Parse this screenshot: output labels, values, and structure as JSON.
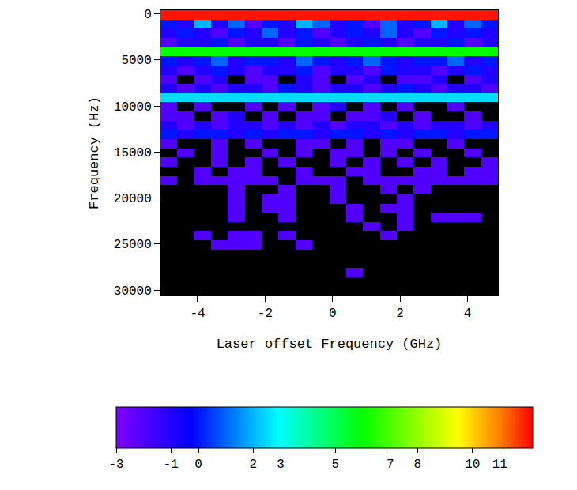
{
  "chart_data": {
    "type": "heatmap",
    "x_label": "Laser offset Frequency (GHz)",
    "y_label": "Frequency (Hz)",
    "x": [
      -4.85,
      -4.35,
      -3.85,
      -3.35,
      -2.85,
      -2.35,
      -1.85,
      -1.35,
      -0.85,
      -0.35,
      0.15,
      0.65,
      1.15,
      1.65,
      2.15,
      2.65,
      3.15,
      3.65,
      4.15,
      4.65
    ],
    "y": [
      100,
      1100,
      2100,
      3100,
      4100,
      5100,
      6100,
      7100,
      8100,
      9100,
      10100,
      11100,
      12100,
      13100,
      14100,
      15100,
      16100,
      17100,
      18100,
      19100,
      20100,
      21100,
      22100,
      23100,
      24100,
      25100,
      26100,
      27100,
      28100,
      29100,
      30100
    ],
    "cells": [
      [
        12,
        12,
        12,
        12,
        12,
        12,
        12,
        12,
        12,
        12,
        12,
        12,
        12,
        12,
        12,
        12,
        12,
        12,
        12,
        12
      ],
      [
        0,
        -1,
        2,
        -1,
        1,
        -2,
        0,
        -1,
        2,
        1,
        -1,
        0,
        -2,
        1,
        -1,
        0,
        2,
        -1,
        1,
        0
      ],
      [
        -1,
        0,
        -1,
        -2,
        0,
        -1,
        1,
        -1,
        0,
        -2,
        -1,
        0,
        -1,
        1,
        -1,
        -2,
        0,
        -1,
        0,
        -1
      ],
      [
        -2,
        -1,
        -1,
        0,
        -2,
        -1,
        -1,
        -2,
        0,
        -1,
        -2,
        -1,
        0,
        -1,
        -2,
        -1,
        -1,
        0,
        -2,
        -1
      ],
      [
        6,
        6,
        6,
        6,
        6,
        6,
        6,
        6,
        6,
        6,
        6,
        6,
        6,
        6,
        6,
        6,
        6,
        6,
        6,
        6
      ],
      [
        0,
        -1,
        0,
        1,
        -1,
        0,
        0,
        -1,
        1,
        0,
        -1,
        0,
        1,
        0,
        -1,
        0,
        0,
        1,
        -1,
        0
      ],
      [
        -1,
        -2,
        -1,
        0,
        -1,
        -2,
        -1,
        -1,
        0,
        -2,
        -1,
        -1,
        -2,
        0,
        -1,
        -1,
        -2,
        -1,
        0,
        -1
      ],
      [
        -2,
        null,
        -2,
        -1,
        null,
        -2,
        -2,
        null,
        -1,
        -2,
        null,
        -2,
        -1,
        null,
        -2,
        -2,
        -1,
        null,
        -2,
        -1
      ],
      [
        -1,
        -2,
        -1,
        -2,
        -1,
        -1,
        -2,
        0,
        -1,
        -2,
        -1,
        -1,
        -2,
        -1,
        0,
        -1,
        -2,
        -1,
        -1,
        -2
      ],
      [
        2.5,
        2.5,
        2.5,
        2.5,
        2.5,
        2.5,
        2.5,
        2.5,
        2.5,
        2.5,
        2.5,
        2.5,
        2.5,
        2.5,
        2.5,
        2.5,
        2.5,
        2.5,
        2.5,
        2.5
      ],
      [
        -2,
        null,
        -2,
        null,
        null,
        -2,
        null,
        -2,
        null,
        -2,
        -1,
        null,
        -2,
        null,
        -2,
        null,
        null,
        -2,
        null,
        null
      ],
      [
        -2,
        -2,
        null,
        -2,
        -1,
        null,
        -2,
        null,
        -2,
        -2,
        null,
        -2,
        -2,
        -1,
        null,
        -2,
        null,
        null,
        -2,
        null
      ],
      [
        -1,
        -2,
        -1,
        -2,
        -1,
        -1,
        -2,
        -1,
        -2,
        -1,
        -2,
        -1,
        -1,
        -2,
        -1,
        -2,
        -1,
        -1,
        -2,
        -1
      ],
      [
        0,
        -1,
        0,
        0,
        -1,
        0,
        -1,
        0,
        0,
        -1,
        0,
        0,
        -1,
        0,
        -1,
        0,
        0,
        -1,
        0,
        0
      ],
      [
        -2,
        null,
        null,
        -2,
        null,
        -2,
        null,
        null,
        -2,
        -2,
        null,
        -2,
        null,
        -2,
        -2,
        null,
        null,
        -2,
        null,
        null
      ],
      [
        null,
        -2,
        null,
        -2,
        null,
        null,
        -2,
        null,
        -2,
        null,
        -2,
        -2,
        null,
        -2,
        null,
        -2,
        null,
        null,
        -2,
        null
      ],
      [
        -2,
        null,
        null,
        -2,
        null,
        -2,
        null,
        -2,
        null,
        null,
        -2,
        null,
        -2,
        null,
        -2,
        null,
        -2,
        null,
        null,
        -2
      ],
      [
        null,
        null,
        -2,
        null,
        -2,
        -2,
        null,
        null,
        -2,
        null,
        null,
        -2,
        -2,
        null,
        null,
        -2,
        -2,
        null,
        -2,
        -2
      ],
      [
        -2,
        null,
        -2,
        -2,
        -2,
        -2,
        -2,
        null,
        -2,
        -2,
        -2,
        null,
        -2,
        -2,
        -2,
        -2,
        -2,
        -2,
        -2,
        -2
      ],
      [
        null,
        null,
        null,
        null,
        -2,
        null,
        null,
        -2,
        null,
        null,
        -2,
        null,
        null,
        -2,
        null,
        -2,
        null,
        null,
        null,
        null
      ],
      [
        null,
        null,
        null,
        null,
        -2,
        null,
        -2,
        -2,
        null,
        null,
        -2,
        null,
        null,
        null,
        -2,
        null,
        null,
        null,
        null,
        null
      ],
      [
        null,
        null,
        null,
        null,
        -2,
        null,
        -2,
        -2,
        null,
        null,
        null,
        -2,
        null,
        -2,
        -2,
        null,
        null,
        null,
        null,
        null
      ],
      [
        null,
        null,
        null,
        null,
        -2,
        null,
        null,
        -2,
        null,
        null,
        null,
        -2,
        null,
        null,
        -2,
        null,
        -2,
        -2,
        -2,
        null
      ],
      [
        null,
        null,
        null,
        null,
        null,
        null,
        null,
        null,
        null,
        null,
        null,
        null,
        -2,
        null,
        -2,
        null,
        null,
        null,
        null,
        null
      ],
      [
        null,
        null,
        -2,
        null,
        -2,
        -2,
        null,
        -2,
        null,
        null,
        null,
        null,
        null,
        -2,
        null,
        null,
        null,
        null,
        null,
        null
      ],
      [
        null,
        null,
        null,
        -2,
        -2,
        -2,
        null,
        null,
        -2,
        null,
        null,
        null,
        null,
        null,
        null,
        null,
        null,
        null,
        null,
        null
      ],
      [
        null,
        null,
        null,
        null,
        null,
        null,
        null,
        null,
        null,
        null,
        null,
        null,
        null,
        null,
        null,
        null,
        null,
        null,
        null,
        null
      ],
      [
        null,
        null,
        null,
        null,
        null,
        null,
        null,
        null,
        null,
        null,
        null,
        null,
        null,
        null,
        null,
        null,
        null,
        null,
        null,
        null
      ],
      [
        null,
        null,
        null,
        null,
        null,
        null,
        null,
        null,
        null,
        null,
        null,
        -2,
        null,
        null,
        null,
        null,
        null,
        null,
        null,
        null
      ],
      [
        null,
        null,
        null,
        null,
        null,
        null,
        null,
        null,
        null,
        null,
        null,
        null,
        null,
        null,
        null,
        null,
        null,
        null,
        null,
        null
      ],
      [
        null,
        null,
        null,
        null,
        null,
        null,
        null,
        null,
        null,
        null,
        null,
        null,
        null,
        null,
        null,
        null,
        null,
        null,
        null,
        null
      ]
    ],
    "xlim": [
      -5.1,
      4.9
    ],
    "xticks": [
      -4,
      -2,
      0,
      2,
      4
    ],
    "ylim": [
      30600,
      -400
    ],
    "yticks": [
      0,
      5000,
      10000,
      15000,
      20000,
      25000,
      30000
    ],
    "color_range": [
      -3,
      12.2
    ],
    "color_ticks": [
      -3,
      -1,
      0,
      2,
      3,
      5,
      7,
      8,
      10,
      11
    ]
  }
}
